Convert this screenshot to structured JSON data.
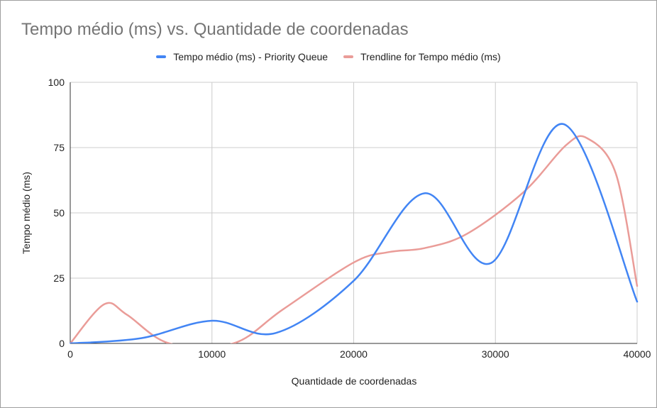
{
  "chart_data": {
    "type": "line",
    "title": "Tempo médio (ms) vs. Quantidade de coordenadas",
    "xlabel": "Quantidade de coordenadas",
    "ylabel": "Tempo médio (ms)",
    "xlim": [
      0,
      40000
    ],
    "ylim": [
      0,
      100
    ],
    "x_ticks": [
      0,
      10000,
      20000,
      30000,
      40000
    ],
    "y_ticks": [
      0,
      25,
      50,
      75,
      100
    ],
    "grid": true,
    "legend_position": "top",
    "series": [
      {
        "name": "Tempo médio (ms) - Priority Queue",
        "color": "#4285f4",
        "points": [
          [
            0,
            0
          ],
          [
            5000,
            2
          ],
          [
            10000,
            8.7
          ],
          [
            14500,
            4
          ],
          [
            20000,
            24
          ],
          [
            25000,
            57.5
          ],
          [
            29700,
            30.8
          ],
          [
            34800,
            84
          ],
          [
            40000,
            16
          ]
        ]
      },
      {
        "name": "Trendline for Tempo médio (ms)",
        "color": "#ea9c98",
        "points": [
          [
            0,
            0
          ],
          [
            2400,
            15
          ],
          [
            4000,
            11
          ],
          [
            7000,
            0
          ],
          [
            11500,
            0
          ],
          [
            15000,
            13
          ],
          [
            20000,
            31
          ],
          [
            22500,
            35
          ],
          [
            25000,
            36.5
          ],
          [
            28000,
            42
          ],
          [
            32000,
            58
          ],
          [
            35000,
            76
          ],
          [
            36500,
            78.5
          ],
          [
            38500,
            65
          ],
          [
            40000,
            22
          ]
        ]
      }
    ]
  }
}
